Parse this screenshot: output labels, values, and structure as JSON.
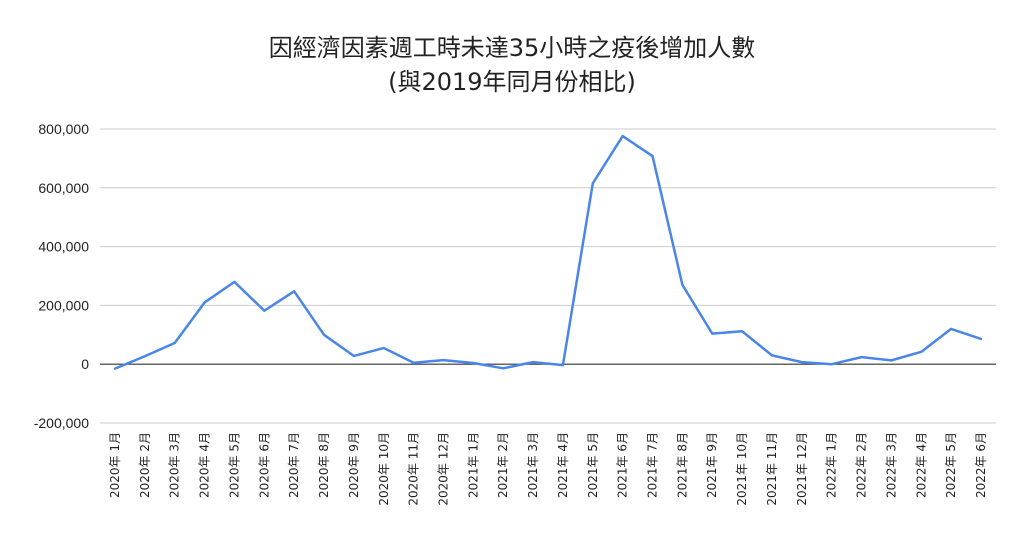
{
  "chart_data": {
    "type": "line",
    "title_line1": "因經濟因素週工時未達35小時之疫後增加人數",
    "title_line2": "(與2019年同月份相比)",
    "xlabel": "",
    "ylabel": "",
    "ylim": [
      -200000,
      800000
    ],
    "yticks": [
      -200000,
      0,
      200000,
      400000,
      600000,
      800000
    ],
    "ytick_labels": [
      "-200,000",
      "0",
      "200,000",
      "400,000",
      "600,000",
      "800,000"
    ],
    "grid": true,
    "legend": "none",
    "categories": [
      "2020年 1月",
      "2020年 2月",
      "2020年 3月",
      "2020年 4月",
      "2020年 5月",
      "2020年 6月",
      "2020年 7月",
      "2020年 8月",
      "2020年 9月",
      "2020年 10月",
      "2020年 11月",
      "2020年 12月",
      "2021年 1月",
      "2021年 2月",
      "2021年 3月",
      "2021年 4月",
      "2021年 5月",
      "2021年 6月",
      "2021年 7月",
      "2021年 8月",
      "2021年 9月",
      "2021年 10月",
      "2021年 11月",
      "2021年 12月",
      "2022年 1月",
      "2022年 2月",
      "2022年 3月",
      "2022年 4月",
      "2022年 5月",
      "2022年 6月"
    ],
    "series": [
      {
        "color": "#4a86e8",
        "values": [
          -15000,
          27000,
          72000,
          210000,
          280000,
          182000,
          248000,
          100000,
          28000,
          55000,
          5000,
          14000,
          4000,
          -14000,
          7000,
          -3000,
          615000,
          776000,
          708000,
          270000,
          104000,
          112000,
          30000,
          7000,
          0,
          24000,
          13000,
          42000,
          120000,
          86000
        ]
      }
    ]
  }
}
